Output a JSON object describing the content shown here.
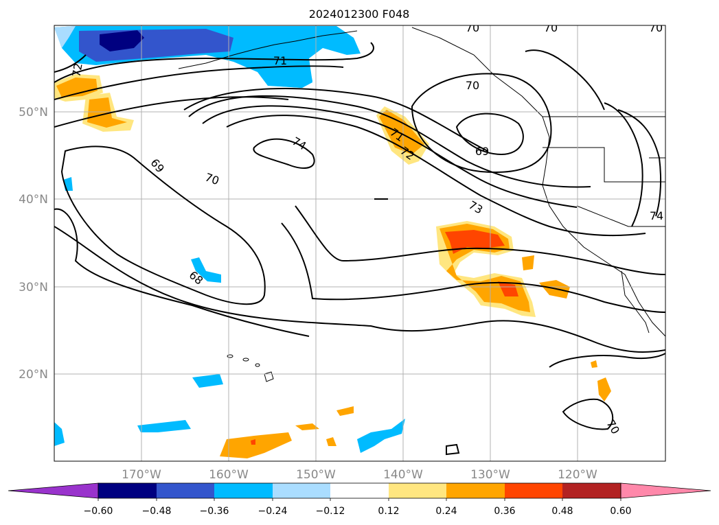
{
  "title": "2024012300 F048",
  "longitude_labels": [
    "170°W",
    "160°W",
    "150°W",
    "140°W",
    "130°W",
    "120°W"
  ],
  "latitude_labels": [
    "50°N",
    "40°N",
    "30°N",
    "20°N"
  ],
  "contour_labels": [
    "72",
    "71",
    "70",
    "70",
    "70",
    "70",
    "69",
    "69",
    "74",
    "70",
    "71",
    "72",
    "73",
    "74",
    "68",
    "70"
  ],
  "colorbar": {
    "ticks": [
      "−0.60",
      "−0.48",
      "−0.36",
      "−0.24",
      "−0.12",
      "0.12",
      "0.24",
      "0.36",
      "0.48",
      "0.60"
    ],
    "colors": [
      "#9933cc",
      "#000080",
      "#3355cc",
      "#00bbff",
      "#aaddff",
      "#ffffff",
      "#ffe680",
      "#ffa500",
      "#ff4500",
      "#b22222",
      "#ff88aa"
    ]
  },
  "colors": {
    "land_line": "#000000",
    "grid": "#b0b0b0",
    "contour": "#000000"
  }
}
